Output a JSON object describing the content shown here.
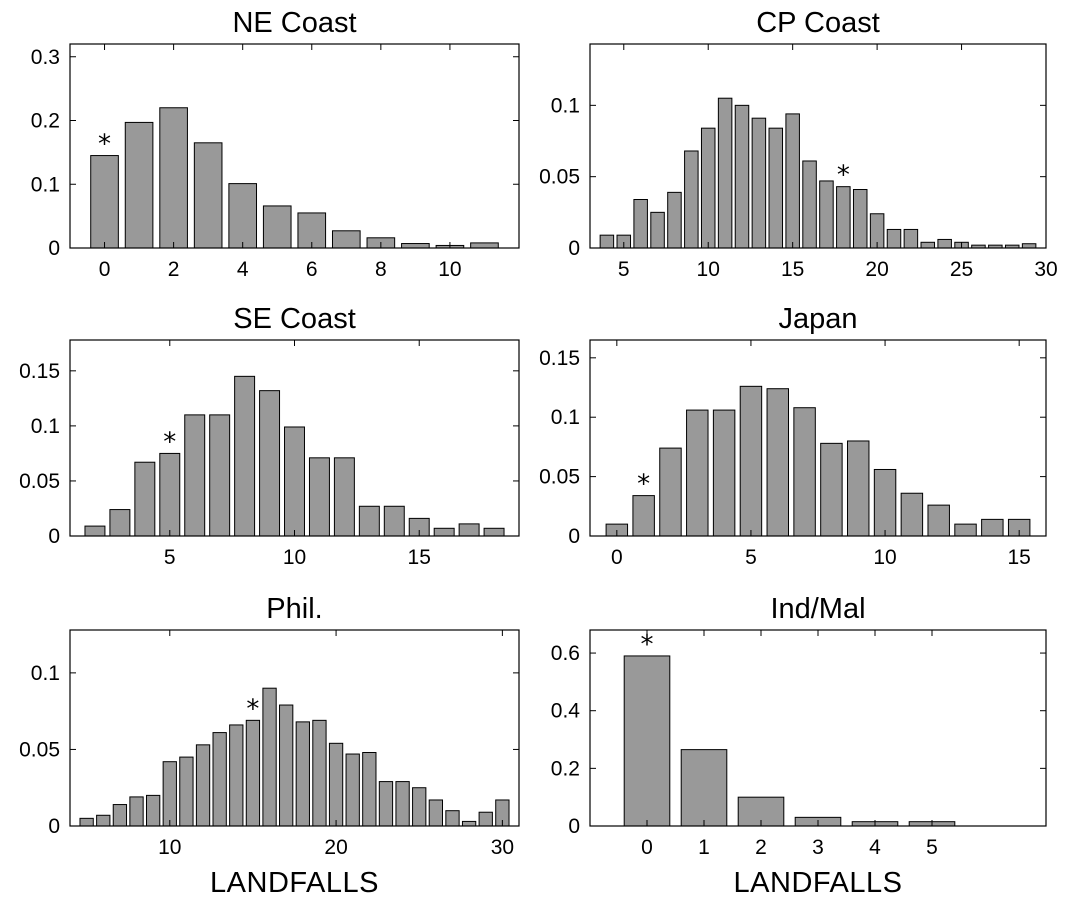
{
  "figure": {
    "xlabel_bottom": "LANDFALLS"
  },
  "chart_data": [
    {
      "type": "bar",
      "title": "NE Coast",
      "x": [
        0,
        1,
        2,
        3,
        4,
        5,
        6,
        7,
        8,
        9,
        10,
        11
      ],
      "values": [
        0.145,
        0.197,
        0.22,
        0.165,
        0.101,
        0.066,
        0.055,
        0.027,
        0.016,
        0.007,
        0.004,
        0.008
      ],
      "xlim": [
        -1,
        12
      ],
      "ylim": [
        0,
        0.32
      ],
      "xticks": [
        0,
        2,
        4,
        6,
        8,
        10
      ],
      "yticks": [
        0,
        0.1,
        0.2,
        0.3
      ],
      "ytick_labels": [
        "0",
        "0.1",
        "0.2",
        "0.3"
      ],
      "marker": {
        "x": 0,
        "symbol": "*"
      },
      "xlabel": ""
    },
    {
      "type": "bar",
      "title": "CP Coast",
      "x": [
        4,
        5,
        6,
        7,
        8,
        9,
        10,
        11,
        12,
        13,
        14,
        15,
        16,
        17,
        18,
        19,
        20,
        21,
        22,
        23,
        24,
        25,
        26,
        27,
        28,
        29
      ],
      "values": [
        0.009,
        0.009,
        0.034,
        0.025,
        0.039,
        0.068,
        0.084,
        0.105,
        0.1,
        0.091,
        0.084,
        0.094,
        0.061,
        0.047,
        0.043,
        0.041,
        0.024,
        0.013,
        0.013,
        0.004,
        0.006,
        0.004,
        0.002,
        0.002,
        0.002,
        0.003
      ],
      "xlim": [
        3,
        30
      ],
      "ylim": [
        0,
        0.143
      ],
      "xticks": [
        5,
        10,
        15,
        20,
        25,
        30
      ],
      "yticks": [
        0,
        0.05,
        0.1
      ],
      "ytick_labels": [
        "0",
        "0.05",
        "0.1"
      ],
      "marker": {
        "x": 18,
        "symbol": "*"
      },
      "xlabel": ""
    },
    {
      "type": "bar",
      "title": "SE Coast",
      "x": [
        2,
        3,
        4,
        5,
        6,
        7,
        8,
        9,
        10,
        11,
        12,
        13,
        14,
        15,
        16,
        17,
        18
      ],
      "values": [
        0.009,
        0.024,
        0.067,
        0.075,
        0.11,
        0.11,
        0.145,
        0.132,
        0.099,
        0.071,
        0.071,
        0.027,
        0.027,
        0.016,
        0.007,
        0.011,
        0.007
      ],
      "xlim": [
        1,
        19
      ],
      "ylim": [
        0,
        0.178
      ],
      "xticks": [
        5,
        10,
        15
      ],
      "yticks": [
        0,
        0.05,
        0.1,
        0.15
      ],
      "ytick_labels": [
        "0",
        "0.05",
        "0.1",
        "0.15"
      ],
      "marker": {
        "x": 5,
        "symbol": "*"
      },
      "xlabel": ""
    },
    {
      "type": "bar",
      "title": "Japan",
      "x": [
        0,
        1,
        2,
        3,
        4,
        5,
        6,
        7,
        8,
        9,
        10,
        11,
        12,
        13,
        14,
        15
      ],
      "values": [
        0.01,
        0.034,
        0.074,
        0.106,
        0.106,
        0.126,
        0.124,
        0.108,
        0.078,
        0.08,
        0.056,
        0.036,
        0.026,
        0.01,
        0.014,
        0.014
      ],
      "xlim": [
        -1,
        16
      ],
      "ylim": [
        0,
        0.165
      ],
      "xticks": [
        0,
        5,
        10,
        15
      ],
      "yticks": [
        0,
        0.05,
        0.1,
        0.15
      ],
      "ytick_labels": [
        "0",
        "0.05",
        "0.1",
        "0.15"
      ],
      "marker": {
        "x": 1,
        "symbol": "*"
      },
      "xlabel": ""
    },
    {
      "type": "bar",
      "title": "Phil.",
      "x": [
        5,
        6,
        7,
        8,
        9,
        10,
        11,
        12,
        13,
        14,
        15,
        16,
        17,
        18,
        19,
        20,
        21,
        22,
        23,
        24,
        25,
        26,
        27,
        28,
        29,
        30
      ],
      "values": [
        0.005,
        0.007,
        0.014,
        0.019,
        0.02,
        0.042,
        0.045,
        0.053,
        0.061,
        0.066,
        0.069,
        0.09,
        0.079,
        0.068,
        0.069,
        0.054,
        0.047,
        0.048,
        0.029,
        0.029,
        0.025,
        0.017,
        0.01,
        0.003,
        0.009,
        0.017
      ],
      "xlim": [
        4,
        31
      ],
      "ylim": [
        0,
        0.128
      ],
      "xticks": [
        10,
        20,
        30
      ],
      "yticks": [
        0,
        0.05,
        0.1
      ],
      "ytick_labels": [
        "0",
        "0.05",
        "0.1"
      ],
      "marker": {
        "x": 15,
        "symbol": "*"
      },
      "xlabel": "LANDFALLS"
    },
    {
      "type": "bar",
      "title": "Ind/Mal",
      "x": [
        0,
        1,
        2,
        3,
        4,
        5
      ],
      "values": [
        0.59,
        0.265,
        0.1,
        0.03,
        0.015,
        0.015
      ],
      "xlim": [
        -1,
        7
      ],
      "ylim": [
        0,
        0.68
      ],
      "xticks": [
        0,
        1,
        2,
        3,
        4,
        5
      ],
      "yticks": [
        0,
        0.2,
        0.4,
        0.6
      ],
      "ytick_labels": [
        "0",
        "0.2",
        "0.4",
        "0.6"
      ],
      "marker": {
        "x": 0,
        "symbol": "*"
      },
      "xlabel": "LANDFALLS"
    }
  ]
}
